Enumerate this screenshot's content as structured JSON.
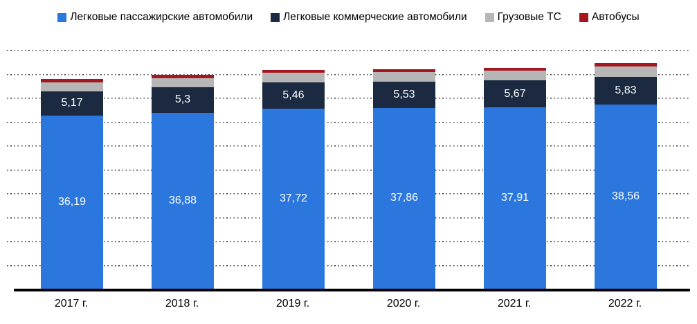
{
  "legend": [
    {
      "label": "Легковые пассажирские автомобили",
      "color": "#2B77DE"
    },
    {
      "label": "Легковые коммерческие автомобили",
      "color": "#1B2A41"
    },
    {
      "label": "Грузовые ТС",
      "color": "#B6B6B6"
    },
    {
      "label": "Автобусы",
      "color": "#A5161F"
    }
  ],
  "chart_data": {
    "type": "bar",
    "stacked": true,
    "title": "",
    "xlabel": "",
    "ylabel": "",
    "categories": [
      "2017 г.",
      "2018 г.",
      "2019 г.",
      "2020 г.",
      "2021 г.",
      "2022 г."
    ],
    "series": [
      {
        "name": "Легковые пассажирские автомобили",
        "color": "#2B77DE",
        "values": [
          36.19,
          36.88,
          37.72,
          37.86,
          37.91,
          38.56
        ],
        "labels": [
          "36,19",
          "36,88",
          "37,72",
          "37,86",
          "37,91",
          "38,56"
        ],
        "label_color": "#FFFFFF",
        "estimated": false
      },
      {
        "name": "Легковые коммерческие автомобили",
        "color": "#1B2A41",
        "values": [
          5.17,
          5.3,
          5.46,
          5.53,
          5.67,
          5.83
        ],
        "labels": [
          "5,17",
          "5,3",
          "5,46",
          "5,53",
          "5,67",
          "5,83"
        ],
        "label_color": "#FFFFFF",
        "estimated": false
      },
      {
        "name": "Грузовые ТС",
        "color": "#B6B6B6",
        "values": [
          1.9,
          1.95,
          2.0,
          2.0,
          2.1,
          2.2
        ],
        "labels": [
          "",
          "",
          "",
          "",
          "",
          ""
        ],
        "label_color": "",
        "estimated": true
      },
      {
        "name": "Автобусы",
        "color": "#A5161F",
        "values": [
          0.6,
          0.6,
          0.6,
          0.6,
          0.6,
          0.65
        ],
        "labels": [
          "",
          "",
          "",
          "",
          "",
          ""
        ],
        "label_color": "",
        "estimated": true
      }
    ],
    "ylim": [
      0,
      50
    ],
    "grid_step": 5,
    "grid_style": "dotted-horizontal",
    "y_tick_labels_shown": false,
    "legend_position": "top"
  }
}
